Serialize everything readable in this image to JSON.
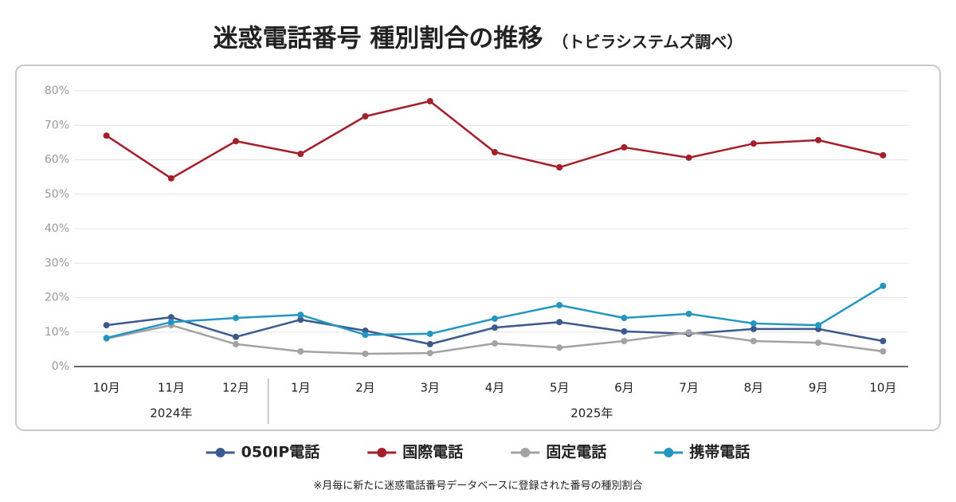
{
  "chart_data": {
    "type": "line",
    "title": "迷惑電話番号 種別割合の推移",
    "subtitle": "（トビラシステムズ調べ）",
    "note": "※月毎に新たに迷惑電話番号データベースに登録された番号の種別割合",
    "categories": [
      "10月",
      "11月",
      "12月",
      "1月",
      "2月",
      "3月",
      "4月",
      "5月",
      "6月",
      "7月",
      "8月",
      "9月",
      "10月"
    ],
    "x_groups": [
      {
        "label": "2024年",
        "count": 3
      },
      {
        "label": "2025年",
        "count": 10
      }
    ],
    "series": [
      {
        "name": "050IP電話",
        "color": "#3d5a8e",
        "values": [
          12.0,
          14.3,
          8.6,
          13.6,
          10.4,
          6.5,
          11.3,
          12.9,
          10.2,
          9.5,
          10.9,
          10.9,
          7.4
        ]
      },
      {
        "name": "国際電話",
        "color": "#a3202a",
        "values": [
          67.0,
          54.6,
          65.4,
          61.7,
          72.6,
          77.0,
          62.2,
          57.8,
          63.6,
          60.6,
          64.7,
          65.7,
          61.3
        ]
      },
      {
        "name": "固定電話",
        "color": "#a3a3a3",
        "values": [
          8.1,
          12.0,
          6.5,
          4.4,
          3.7,
          3.9,
          6.7,
          5.5,
          7.4,
          9.9,
          7.4,
          6.9,
          4.4
        ]
      },
      {
        "name": "携帯電話",
        "color": "#2596c0",
        "values": [
          8.3,
          12.9,
          14.1,
          15.0,
          9.2,
          9.5,
          13.9,
          17.8,
          14.1,
          15.3,
          12.5,
          12.0,
          23.4
        ]
      }
    ],
    "ylim": [
      0,
      80
    ],
    "yticks": [
      {
        "value": 0,
        "label": "0%"
      },
      {
        "value": 10,
        "label": "10%"
      },
      {
        "value": 20,
        "label": "20%"
      },
      {
        "value": 30,
        "label": "30%"
      },
      {
        "value": 40,
        "label": "40%"
      },
      {
        "value": 50,
        "label": "50%"
      },
      {
        "value": 60,
        "label": "60%"
      },
      {
        "value": 70,
        "label": "70%"
      },
      {
        "value": 80,
        "label": "80%"
      }
    ],
    "grid": true,
    "legend": "bottom"
  }
}
